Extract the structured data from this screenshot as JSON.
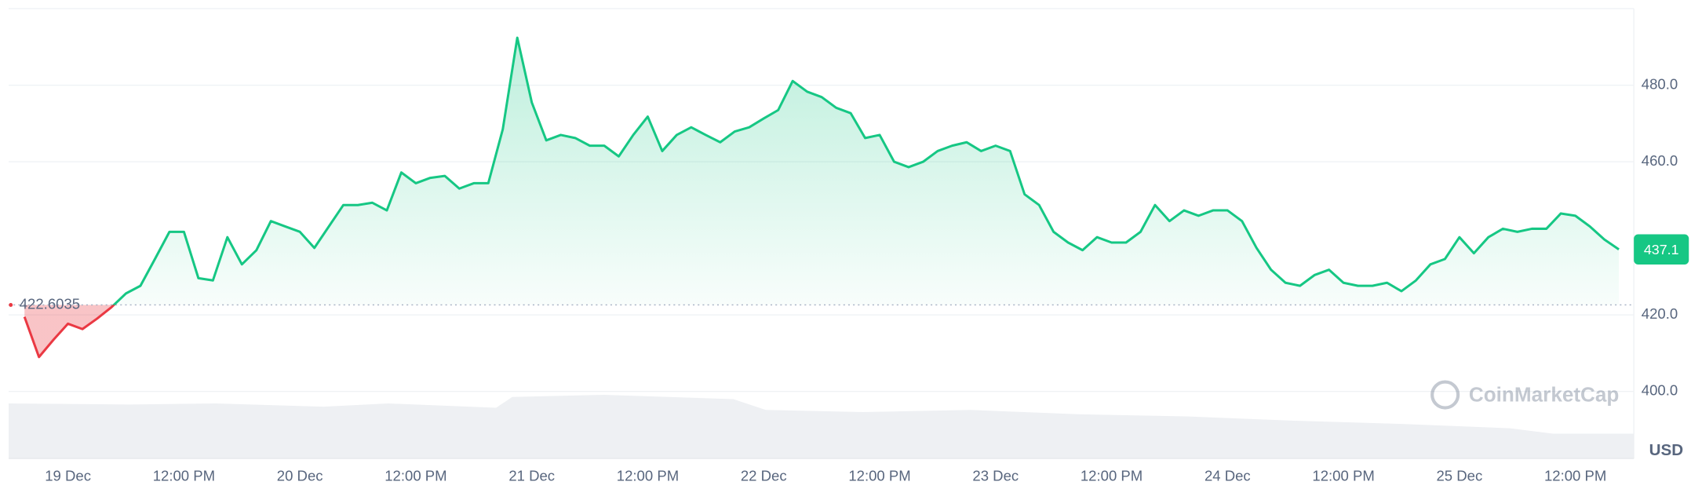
{
  "chart_data": {
    "type": "line",
    "categories": [
      null,
      null,
      null,
      "19 Dec",
      null,
      null,
      null,
      null,
      null,
      null,
      null,
      "12:00 PM",
      null,
      null,
      null,
      null,
      null,
      null,
      null,
      "20 Dec",
      null,
      null,
      null,
      null,
      null,
      null,
      null,
      "12:00 PM",
      null,
      null,
      null,
      null,
      null,
      null,
      null,
      "21 Dec",
      null,
      null,
      null,
      null,
      null,
      null,
      null,
      "12:00 PM",
      null,
      null,
      null,
      null,
      null,
      null,
      null,
      "22 Dec",
      null,
      null,
      null,
      null,
      null,
      null,
      null,
      "12:00 PM",
      null,
      null,
      null,
      null,
      null,
      null,
      null,
      "23 Dec",
      null,
      null,
      null,
      null,
      null,
      null,
      null,
      "12:00 PM",
      null,
      null,
      null,
      null,
      null,
      null,
      null,
      "24 Dec",
      null,
      null,
      null,
      null,
      null,
      null,
      null,
      "12:00 PM",
      null,
      null,
      null,
      null,
      null,
      null,
      null,
      "25 Dec",
      null,
      null,
      null,
      null,
      null,
      null,
      null,
      "12:00 PM",
      null,
      null,
      null
    ],
    "values": [
      419.5,
      409,
      413.5,
      417.7,
      416.3,
      419,
      422,
      425.6,
      427.6,
      434.6,
      441.7,
      441.7,
      429.6,
      429,
      440.3,
      433.2,
      436.9,
      444.5,
      443.1,
      441.7,
      437.5,
      443.1,
      448.7,
      448.7,
      449.3,
      447.3,
      457.2,
      454.4,
      455.8,
      456.3,
      453,
      454.4,
      454.4,
      468.5,
      492.4,
      475.5,
      465.6,
      467,
      466.2,
      464.2,
      464.2,
      461.4,
      467,
      471.8,
      462.8,
      467,
      469,
      467,
      465.1,
      467.9,
      469,
      471.3,
      473.5,
      481.1,
      478.3,
      476.9,
      474.1,
      472.7,
      466.2,
      467,
      460,
      458.6,
      460,
      462.8,
      464.2,
      465.1,
      462.8,
      464.2,
      462.8,
      451.5,
      448.7,
      441.7,
      438.9,
      436.9,
      440.3,
      438.9,
      438.9,
      441.7,
      448.7,
      444.5,
      447.3,
      445.9,
      447.3,
      447.3,
      444.5,
      437.5,
      431.8,
      428.4,
      427.6,
      430.4,
      431.8,
      428.4,
      427.6,
      427.6,
      428.4,
      426.2,
      429,
      433.2,
      434.6,
      440.3,
      436.1,
      440.3,
      442.5,
      441.7,
      442.5,
      442.5,
      446.5,
      445.9,
      443.1,
      439.7,
      437.1
    ],
    "up_color": "#16c784",
    "down_color": "#ea3943",
    "baseline": 422.6035,
    "current_price": "437.1",
    "ylim": [
      382.5,
      500
    ],
    "yticks": [
      {
        "value": 400,
        "label": "400.0"
      },
      {
        "value": 420,
        "label": "420.0"
      },
      {
        "value": 460,
        "label": "460.0"
      },
      {
        "value": 480,
        "label": "480.0"
      }
    ],
    "y_unit": "USD",
    "grid": true,
    "watermark": "CoinMarketCap"
  }
}
